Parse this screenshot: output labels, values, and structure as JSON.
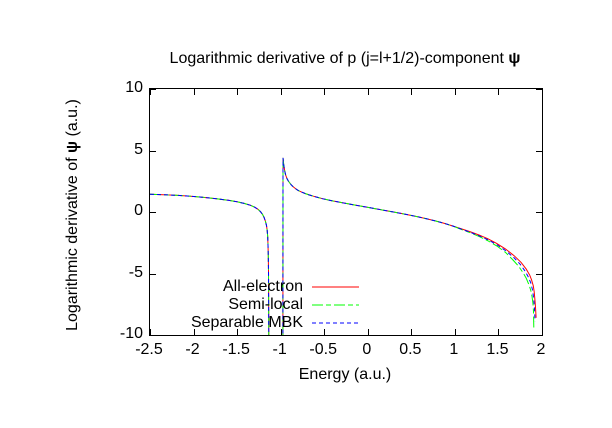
{
  "title": {
    "prefix": "Logarithmic derivative of p (j=l+1/2)-component ",
    "psi": "ψ"
  },
  "ylabel": {
    "prefix": "Logarithmic derivative of ",
    "psi": "ψ",
    "suffix": " (a.u.)"
  },
  "chart_data": {
    "type": "line",
    "title": "Logarithmic derivative of p (j=l+1/2)-component ψ",
    "xlabel": "Energy (a.u.)",
    "ylabel": "Logarithmic derivative of ψ (a.u.)",
    "xlim": [
      -2.5,
      2
    ],
    "ylim": [
      -10,
      10
    ],
    "x_ticks": [
      -2.5,
      -2,
      -1.5,
      -1,
      -0.5,
      0,
      0.5,
      1,
      1.5,
      2
    ],
    "x_tick_labels": [
      "-2.5",
      "-2",
      "-1.5",
      "-1",
      "-0.5",
      "0",
      "0.5",
      "1",
      "1.5",
      "2"
    ],
    "y_ticks": [
      10,
      5,
      0,
      -5,
      -10
    ],
    "y_tick_labels": [
      "10",
      "5",
      "0",
      "-5",
      "-10"
    ],
    "grid": false,
    "legend_position": "inside bottom-left-of-center",
    "axis_color": "#000000",
    "background_color": "#ffffff",
    "pole_note": "curve diverges to -inf near x=-1.14 and returns from below at x=-0.97 peaking near +4.4",
    "series": [
      {
        "name": "All-electron",
        "color": "#ff0000",
        "dash": "solid",
        "points": [
          [
            -2.5,
            1.45
          ],
          [
            -2.35,
            1.41
          ],
          [
            -2.2,
            1.36
          ],
          [
            -2.05,
            1.29
          ],
          [
            -1.9,
            1.2
          ],
          [
            -1.75,
            1.09
          ],
          [
            -1.6,
            0.95
          ],
          [
            -1.5,
            0.83
          ],
          [
            -1.42,
            0.7
          ],
          [
            -1.35,
            0.55
          ],
          [
            -1.3,
            0.4
          ],
          [
            -1.26,
            0.22
          ],
          [
            -1.23,
            0.02
          ],
          [
            -1.21,
            -0.18
          ],
          [
            -1.19,
            -0.45
          ],
          [
            -1.175,
            -0.75
          ],
          [
            -1.163,
            -1.1
          ],
          [
            -1.155,
            -1.5
          ],
          [
            -1.149,
            -2.0
          ],
          [
            -1.145,
            -2.7
          ],
          [
            -1.142,
            -3.6
          ],
          [
            -1.14,
            -4.8
          ],
          [
            -1.138,
            -6.5
          ],
          [
            -1.136,
            -10.5
          ],
          [
            -0.974,
            -10.5
          ],
          [
            -0.973,
            4.4
          ],
          [
            -0.965,
            3.85
          ],
          [
            -0.955,
            3.4
          ],
          [
            -0.945,
            3.05
          ],
          [
            -0.93,
            2.75
          ],
          [
            -0.915,
            2.55
          ],
          [
            -0.9,
            2.4
          ],
          [
            -0.88,
            2.22
          ],
          [
            -0.86,
            2.07
          ],
          [
            -0.83,
            1.9
          ],
          [
            -0.8,
            1.76
          ],
          [
            -0.76,
            1.62
          ],
          [
            -0.72,
            1.5
          ],
          [
            -0.67,
            1.38
          ],
          [
            -0.62,
            1.28
          ],
          [
            -0.57,
            1.18
          ],
          [
            -0.52,
            1.08
          ],
          [
            -0.42,
            0.93
          ],
          [
            -0.32,
            0.79
          ],
          [
            -0.22,
            0.66
          ],
          [
            -0.12,
            0.53
          ],
          [
            -0.02,
            0.41
          ],
          [
            0.08,
            0.28
          ],
          [
            0.18,
            0.15
          ],
          [
            0.28,
            0.02
          ],
          [
            0.38,
            -0.11
          ],
          [
            0.48,
            -0.25
          ],
          [
            0.58,
            -0.4
          ],
          [
            0.68,
            -0.56
          ],
          [
            0.78,
            -0.73
          ],
          [
            0.88,
            -0.93
          ],
          [
            0.98,
            -1.15
          ],
          [
            1.08,
            -1.38
          ],
          [
            1.18,
            -1.62
          ],
          [
            1.28,
            -1.88
          ],
          [
            1.38,
            -2.18
          ],
          [
            1.48,
            -2.55
          ],
          [
            1.58,
            -3.0
          ],
          [
            1.68,
            -3.55
          ],
          [
            1.76,
            -4.1
          ],
          [
            1.82,
            -4.65
          ],
          [
            1.86,
            -5.15
          ],
          [
            1.88,
            -5.5
          ],
          [
            1.9,
            -6.0
          ],
          [
            1.91,
            -6.5
          ],
          [
            1.92,
            -7.2
          ],
          [
            1.928,
            -8.0
          ],
          [
            1.932,
            -8.6
          ]
        ]
      },
      {
        "name": "Semi-local",
        "color": "#00ff00",
        "dash": "dash-dot",
        "points": [
          [
            -2.5,
            1.45
          ],
          [
            -2.35,
            1.41
          ],
          [
            -2.2,
            1.36
          ],
          [
            -2.05,
            1.29
          ],
          [
            -1.9,
            1.2
          ],
          [
            -1.75,
            1.09
          ],
          [
            -1.6,
            0.95
          ],
          [
            -1.5,
            0.83
          ],
          [
            -1.42,
            0.7
          ],
          [
            -1.35,
            0.55
          ],
          [
            -1.3,
            0.4
          ],
          [
            -1.26,
            0.22
          ],
          [
            -1.23,
            0.02
          ],
          [
            -1.21,
            -0.18
          ],
          [
            -1.19,
            -0.45
          ],
          [
            -1.175,
            -0.75
          ],
          [
            -1.163,
            -1.1
          ],
          [
            -1.155,
            -1.5
          ],
          [
            -1.149,
            -2.0
          ],
          [
            -1.145,
            -2.7
          ],
          [
            -1.142,
            -3.6
          ],
          [
            -1.14,
            -4.8
          ],
          [
            -1.138,
            -6.5
          ],
          [
            -1.136,
            -10.5
          ],
          [
            -0.974,
            -10.5
          ],
          [
            -0.973,
            4.4
          ],
          [
            -0.965,
            3.85
          ],
          [
            -0.955,
            3.4
          ],
          [
            -0.945,
            3.05
          ],
          [
            -0.93,
            2.75
          ],
          [
            -0.915,
            2.55
          ],
          [
            -0.9,
            2.4
          ],
          [
            -0.88,
            2.22
          ],
          [
            -0.86,
            2.07
          ],
          [
            -0.83,
            1.9
          ],
          [
            -0.8,
            1.76
          ],
          [
            -0.76,
            1.62
          ],
          [
            -0.72,
            1.5
          ],
          [
            -0.67,
            1.38
          ],
          [
            -0.62,
            1.28
          ],
          [
            -0.57,
            1.18
          ],
          [
            -0.52,
            1.08
          ],
          [
            -0.42,
            0.93
          ],
          [
            -0.32,
            0.79
          ],
          [
            -0.22,
            0.66
          ],
          [
            -0.12,
            0.53
          ],
          [
            -0.02,
            0.41
          ],
          [
            0.08,
            0.28
          ],
          [
            0.18,
            0.15
          ],
          [
            0.28,
            0.02
          ],
          [
            0.38,
            -0.11
          ],
          [
            0.48,
            -0.25
          ],
          [
            0.58,
            -0.4
          ],
          [
            0.68,
            -0.56
          ],
          [
            0.78,
            -0.73
          ],
          [
            0.88,
            -0.93
          ],
          [
            0.98,
            -1.15
          ],
          [
            1.08,
            -1.44
          ],
          [
            1.18,
            -1.7
          ],
          [
            1.28,
            -2.0
          ],
          [
            1.38,
            -2.34
          ],
          [
            1.48,
            -2.76
          ],
          [
            1.58,
            -3.28
          ],
          [
            1.66,
            -3.85
          ],
          [
            1.73,
            -4.4
          ],
          [
            1.78,
            -4.9
          ],
          [
            1.82,
            -5.4
          ],
          [
            1.85,
            -5.9
          ],
          [
            1.87,
            -6.35
          ],
          [
            1.885,
            -6.85
          ],
          [
            1.895,
            -7.4
          ],
          [
            1.902,
            -8.1
          ],
          [
            1.906,
            -9.4
          ]
        ]
      },
      {
        "name": "Separable MBK",
        "color": "#0000ff",
        "dash": "dashed",
        "points": [
          [
            -2.5,
            1.45
          ],
          [
            -2.35,
            1.41
          ],
          [
            -2.2,
            1.36
          ],
          [
            -2.05,
            1.29
          ],
          [
            -1.9,
            1.2
          ],
          [
            -1.75,
            1.09
          ],
          [
            -1.6,
            0.95
          ],
          [
            -1.5,
            0.83
          ],
          [
            -1.42,
            0.7
          ],
          [
            -1.35,
            0.55
          ],
          [
            -1.3,
            0.4
          ],
          [
            -1.26,
            0.22
          ],
          [
            -1.23,
            0.02
          ],
          [
            -1.21,
            -0.18
          ],
          [
            -1.19,
            -0.45
          ],
          [
            -1.175,
            -0.75
          ],
          [
            -1.163,
            -1.1
          ],
          [
            -1.155,
            -1.5
          ],
          [
            -1.149,
            -2.0
          ],
          [
            -1.145,
            -2.7
          ],
          [
            -1.142,
            -3.6
          ],
          [
            -1.14,
            -4.8
          ],
          [
            -1.138,
            -6.5
          ],
          [
            -1.136,
            -10.5
          ],
          [
            -0.974,
            -10.5
          ],
          [
            -0.973,
            4.4
          ],
          [
            -0.965,
            3.85
          ],
          [
            -0.955,
            3.4
          ],
          [
            -0.945,
            3.05
          ],
          [
            -0.93,
            2.75
          ],
          [
            -0.915,
            2.55
          ],
          [
            -0.9,
            2.4
          ],
          [
            -0.88,
            2.22
          ],
          [
            -0.86,
            2.07
          ],
          [
            -0.83,
            1.9
          ],
          [
            -0.8,
            1.76
          ],
          [
            -0.76,
            1.62
          ],
          [
            -0.72,
            1.5
          ],
          [
            -0.67,
            1.38
          ],
          [
            -0.62,
            1.28
          ],
          [
            -0.57,
            1.18
          ],
          [
            -0.52,
            1.08
          ],
          [
            -0.42,
            0.93
          ],
          [
            -0.32,
            0.79
          ],
          [
            -0.22,
            0.66
          ],
          [
            -0.12,
            0.53
          ],
          [
            -0.02,
            0.41
          ],
          [
            0.08,
            0.28
          ],
          [
            0.18,
            0.15
          ],
          [
            0.28,
            0.02
          ],
          [
            0.38,
            -0.11
          ],
          [
            0.48,
            -0.25
          ],
          [
            0.58,
            -0.4
          ],
          [
            0.68,
            -0.56
          ],
          [
            0.78,
            -0.73
          ],
          [
            0.88,
            -0.93
          ],
          [
            0.98,
            -1.15
          ],
          [
            1.08,
            -1.41
          ],
          [
            1.18,
            -1.66
          ],
          [
            1.28,
            -1.94
          ],
          [
            1.38,
            -2.26
          ],
          [
            1.48,
            -2.65
          ],
          [
            1.58,
            -3.13
          ],
          [
            1.68,
            -3.72
          ],
          [
            1.75,
            -4.25
          ],
          [
            1.8,
            -4.75
          ],
          [
            1.84,
            -5.25
          ],
          [
            1.87,
            -5.75
          ],
          [
            1.89,
            -6.3
          ],
          [
            1.9,
            -6.8
          ],
          [
            1.91,
            -7.5
          ],
          [
            1.916,
            -8.2
          ],
          [
            1.92,
            -8.9
          ]
        ]
      }
    ]
  }
}
